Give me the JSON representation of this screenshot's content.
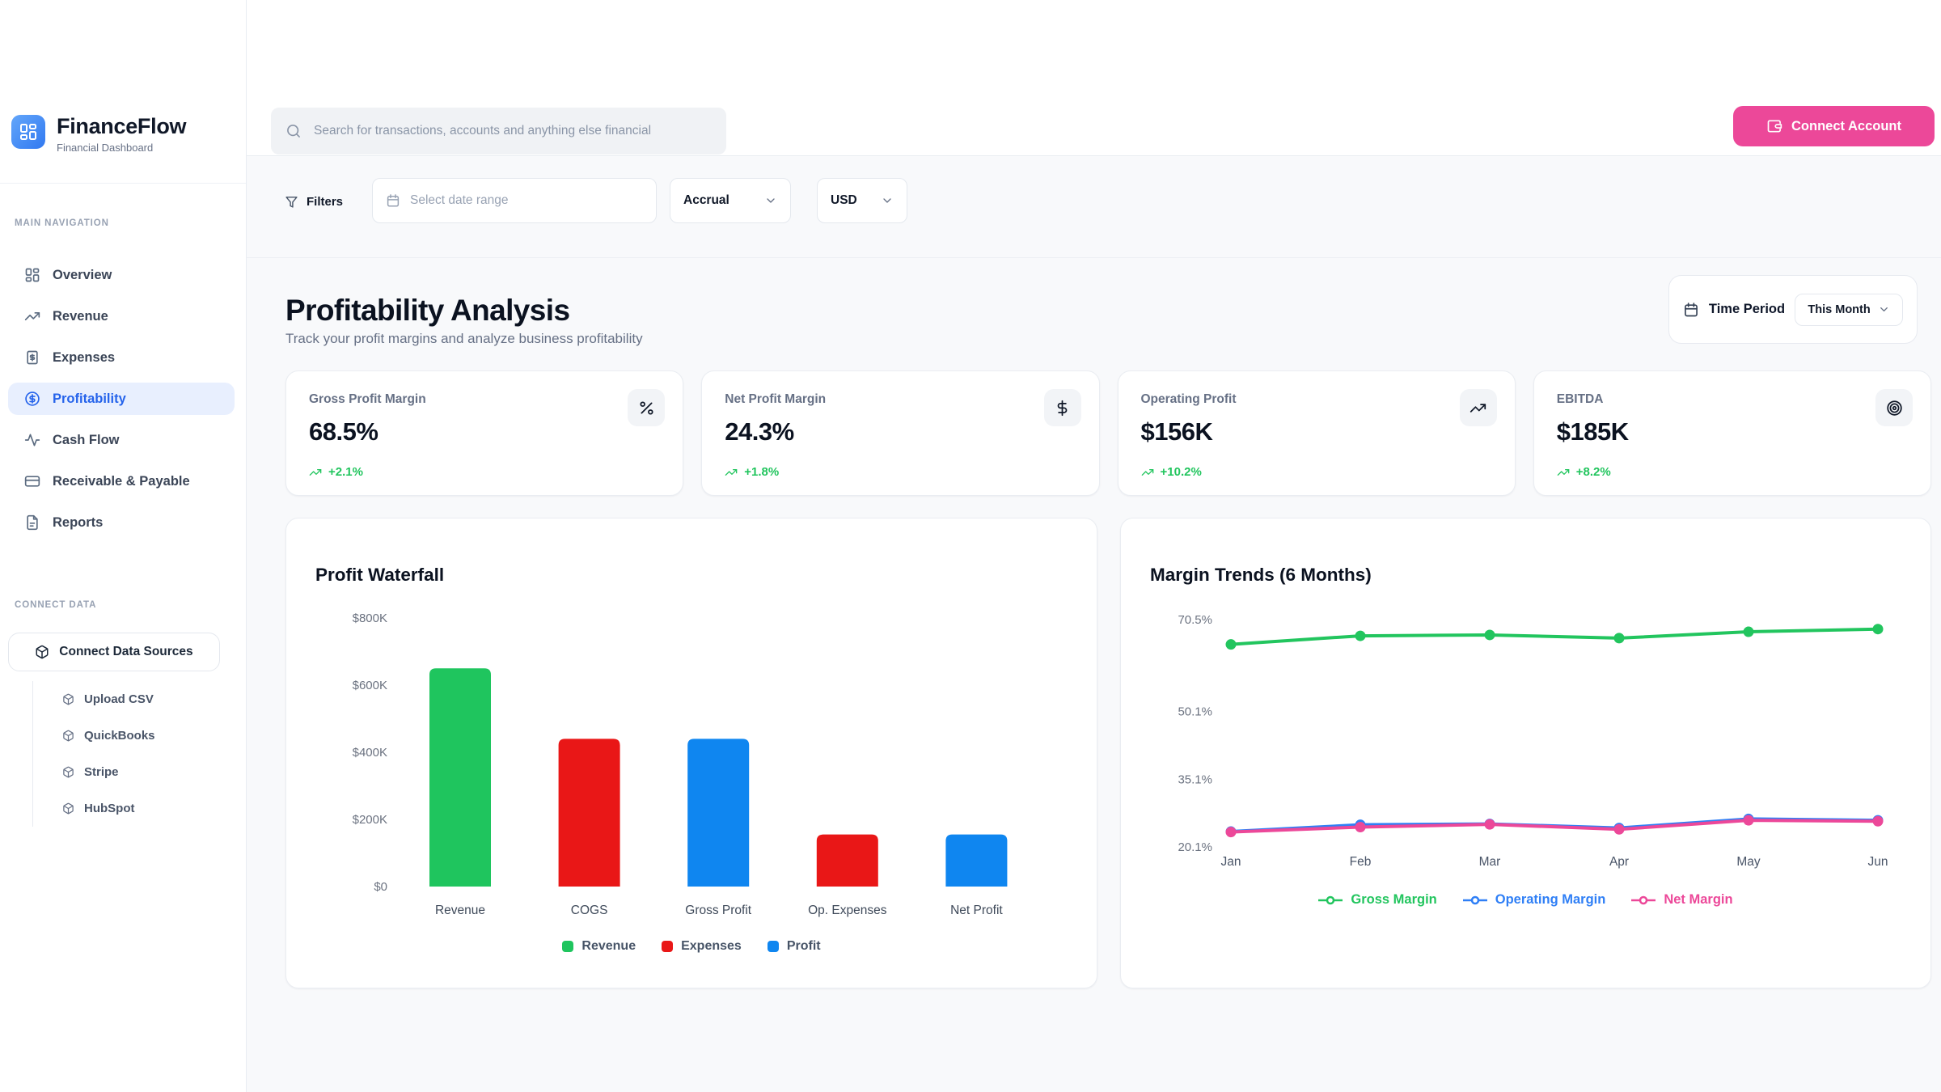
{
  "app": {
    "name": "FinanceFlow",
    "tagline": "Financial Dashboard"
  },
  "header": {
    "search_placeholder": "Search for transactions, accounts and anything else financial",
    "connect_account_label": "Connect Account"
  },
  "sidebar": {
    "nav_section_label": "MAIN NAVIGATION",
    "nav_items": [
      {
        "label": "Overview",
        "icon": "dashboard-icon",
        "active": false
      },
      {
        "label": "Revenue",
        "icon": "trending-up-icon",
        "active": false
      },
      {
        "label": "Expenses",
        "icon": "receipt-icon",
        "active": false
      },
      {
        "label": "Profitability",
        "icon": "dollar-circle-icon",
        "active": true
      },
      {
        "label": "Cash Flow",
        "icon": "activity-icon",
        "active": false
      },
      {
        "label": "Receivable & Payable",
        "icon": "credit-card-icon",
        "active": false
      },
      {
        "label": "Reports",
        "icon": "file-text-icon",
        "active": false
      }
    ],
    "connect_section_label": "CONNECT DATA",
    "connect_button_label": "Connect Data Sources",
    "connect_items": [
      {
        "label": "Upload CSV",
        "icon": "cube-icon"
      },
      {
        "label": "QuickBooks",
        "icon": "cube-icon"
      },
      {
        "label": "Stripe",
        "icon": "cube-icon"
      },
      {
        "label": "HubSpot",
        "icon": "cube-icon"
      }
    ]
  },
  "filters": {
    "label": "Filters",
    "date_range_placeholder": "Select date range",
    "accounting_method": "Accrual",
    "currency": "USD"
  },
  "page": {
    "title": "Profitability Analysis",
    "subtitle": "Track your profit margins and analyze business profitability",
    "time_period_label": "Time Period",
    "time_period_value": "This Month"
  },
  "kpis": [
    {
      "label": "Gross Profit Margin",
      "value": "68.5%",
      "change": "+2.1%",
      "icon": "percent-icon"
    },
    {
      "label": "Net Profit Margin",
      "value": "24.3%",
      "change": "+1.8%",
      "icon": "dollar-icon"
    },
    {
      "label": "Operating Profit",
      "value": "$156K",
      "change": "+10.2%",
      "icon": "trending-up-icon"
    },
    {
      "label": "EBITDA",
      "value": "$185K",
      "change": "+8.2%",
      "icon": "target-icon"
    }
  ],
  "colors": {
    "accent_pink": "#ec4899",
    "active_blue": "#2563eb",
    "positive_green": "#22c55e",
    "bar_green": "#1fc55e",
    "bar_red": "#e91717",
    "bar_blue": "#0f86f0"
  },
  "chart_data": [
    {
      "type": "bar",
      "title": "Profit Waterfall",
      "categories": [
        "Revenue",
        "COGS",
        "Gross Profit",
        "Op. Expenses",
        "Net Profit"
      ],
      "values": [
        650,
        440,
        440,
        155,
        155
      ],
      "unit": "$K",
      "bar_colors": [
        "#1fc55e",
        "#e91717",
        "#0f86f0",
        "#e91717",
        "#0f86f0"
      ],
      "y_ticks": [
        {
          "label": "$800K",
          "value": 800
        },
        {
          "label": "$600K",
          "value": 600
        },
        {
          "label": "$400K",
          "value": 400
        },
        {
          "label": "$200K",
          "value": 200
        },
        {
          "label": "$0",
          "value": 0
        }
      ],
      "ylim": [
        0,
        800
      ],
      "grid": false,
      "legend_position": "bottom",
      "legend": [
        {
          "label": "Revenue",
          "color": "#1fc55e"
        },
        {
          "label": "Expenses",
          "color": "#e91717"
        },
        {
          "label": "Profit",
          "color": "#0f86f0"
        }
      ]
    },
    {
      "type": "line",
      "title": "Margin Trends (6 Months)",
      "x": [
        "Jan",
        "Feb",
        "Mar",
        "Apr",
        "May",
        "Jun"
      ],
      "series": [
        {
          "name": "Gross Margin",
          "color": "#22c55e",
          "values": [
            65.0,
            66.9,
            67.1,
            66.4,
            67.8,
            68.4
          ]
        },
        {
          "name": "Operating Margin",
          "color": "#2f7ff6",
          "values": [
            23.5,
            25.0,
            25.2,
            24.3,
            26.3,
            26.0
          ]
        },
        {
          "name": "Net Margin",
          "color": "#ec4899",
          "values": [
            23.4,
            24.5,
            25.1,
            24.0,
            26.0,
            25.8
          ]
        }
      ],
      "unit": "%",
      "y_ticks": [
        {
          "label": "70.5%",
          "value": 70.5
        },
        {
          "label": "50.1%",
          "value": 50.1
        },
        {
          "label": "35.1%",
          "value": 35.1
        },
        {
          "label": "20.1%",
          "value": 20.1
        }
      ],
      "ylim": [
        18,
        72
      ],
      "grid": false,
      "legend_position": "bottom"
    }
  ]
}
